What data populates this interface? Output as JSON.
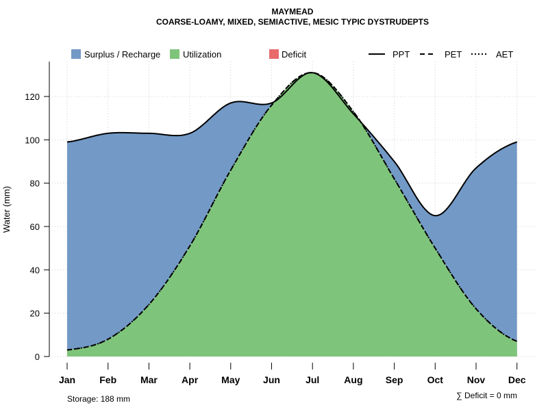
{
  "chart_data": {
    "type": "area",
    "title": "MAYMEAD",
    "subtitle": "COARSE-LOAMY, MIXED, SEMIACTIVE, MESIC TYPIC DYSTRUDEPTS",
    "xlabel": "",
    "ylabel": "Water (mm)",
    "ylim": [
      0,
      135
    ],
    "yticks": [
      0,
      20,
      40,
      60,
      80,
      100,
      120
    ],
    "categories": [
      "Jan",
      "Feb",
      "Mar",
      "Apr",
      "May",
      "Jun",
      "Jul",
      "Aug",
      "Sep",
      "Oct",
      "Nov",
      "Dec"
    ],
    "series": [
      {
        "name": "PPT",
        "style": "solid",
        "values": [
          99,
          103,
          103,
          103,
          117,
          117,
          131,
          112,
          90,
          65,
          87,
          99
        ]
      },
      {
        "name": "PET",
        "style": "dashed",
        "values": [
          3,
          8,
          24,
          51,
          86,
          116,
          131,
          113,
          82,
          50,
          22,
          7
        ]
      },
      {
        "name": "AET",
        "style": "dotted",
        "values": [
          3,
          8,
          24,
          51,
          86,
          116,
          131,
          113,
          82,
          50,
          22,
          7
        ]
      }
    ],
    "legend": {
      "placement": "top",
      "fills": [
        {
          "label": "Surplus / Recharge",
          "color": "#7399c6"
        },
        {
          "label": "Utilization",
          "color": "#7fc47b"
        },
        {
          "label": "Deficit",
          "color": "#e86a6a"
        }
      ],
      "lines": [
        {
          "label": "PPT",
          "dash": "solid"
        },
        {
          "label": "PET",
          "dash": "dashed"
        },
        {
          "label": "AET",
          "dash": "dotted"
        }
      ]
    },
    "grid": true,
    "annotations": {
      "storage": "Storage: 188 mm",
      "deficit": "∑ Deficit = 0 mm"
    }
  }
}
